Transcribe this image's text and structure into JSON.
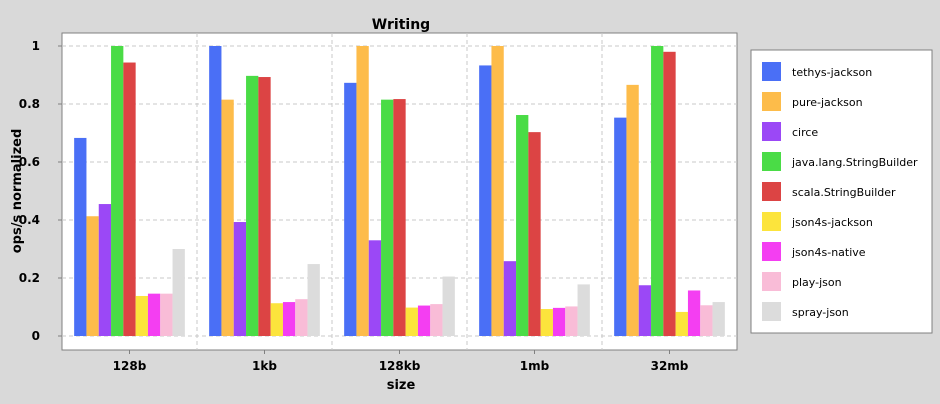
{
  "chart_data": {
    "type": "bar",
    "title": "Writing",
    "xlabel": "size",
    "ylabel": "ops/s normalized",
    "ylim": [
      0,
      1.05
    ],
    "yticks": [
      0,
      0.2,
      0.4,
      0.6,
      0.8,
      1
    ],
    "ytick_labels": [
      "0",
      "0.2",
      "0.4",
      "0.6",
      "0.8",
      "1"
    ],
    "grid": true,
    "legend_position": "right",
    "categories": [
      "128b",
      "1kb",
      "128kb",
      "1mb",
      "32mb"
    ],
    "series": [
      {
        "name": "tethys-jackson",
        "color": "#4a6ff6",
        "values": [
          0.683,
          1.0,
          0.873,
          0.933,
          0.753
        ]
      },
      {
        "name": "pure-jackson",
        "color": "#fdbc4a",
        "values": [
          0.413,
          0.815,
          1.0,
          1.0,
          0.866
        ]
      },
      {
        "name": "circe",
        "color": "#9b48f6",
        "values": [
          0.455,
          0.393,
          0.33,
          0.258,
          0.175
        ]
      },
      {
        "name": "java.lang.StringBuilder",
        "color": "#4adc46",
        "values": [
          1.0,
          0.897,
          0.815,
          0.762,
          1.0
        ]
      },
      {
        "name": "scala.StringBuilder",
        "color": "#dc4444",
        "values": [
          0.943,
          0.893,
          0.817,
          0.703,
          0.98
        ]
      },
      {
        "name": "json4s-jackson",
        "color": "#fce43c",
        "values": [
          0.138,
          0.113,
          0.098,
          0.093,
          0.083
        ]
      },
      {
        "name": "json4s-native",
        "color": "#f43ef2",
        "values": [
          0.146,
          0.117,
          0.105,
          0.097,
          0.157
        ]
      },
      {
        "name": "play-json",
        "color": "#f9bcd7",
        "values": [
          0.146,
          0.127,
          0.11,
          0.102,
          0.106
        ]
      },
      {
        "name": "spray-json",
        "color": "#dcdcdc",
        "values": [
          0.3,
          0.248,
          0.205,
          0.178,
          0.117
        ]
      }
    ]
  }
}
